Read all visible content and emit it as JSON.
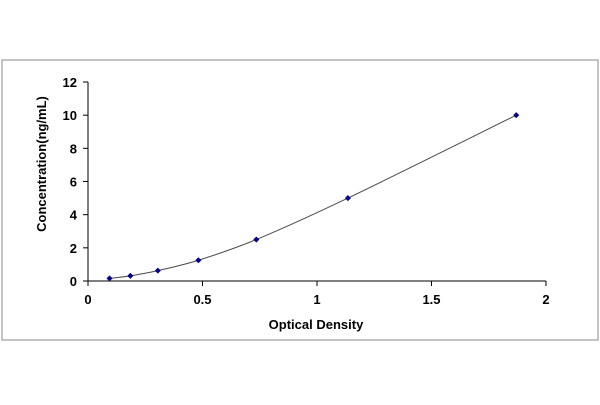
{
  "chart_data": {
    "type": "scatter",
    "title": "",
    "xlabel": "Optical Density",
    "ylabel": "Concentration(ng/mL)",
    "xlim": [
      0,
      2
    ],
    "ylim": [
      0,
      12
    ],
    "x_ticks": [
      0,
      0.5,
      1,
      1.5,
      2
    ],
    "x_tick_labels": [
      "0",
      "0.5",
      "1",
      "1.5",
      "2"
    ],
    "y_ticks": [
      0,
      2,
      4,
      6,
      8,
      10,
      12
    ],
    "y_tick_labels": [
      "0",
      "2",
      "4",
      "6",
      "8",
      "10",
      "12"
    ],
    "grid": false,
    "legend": "none",
    "series": [
      {
        "x": [
          0.094,
          0.185,
          0.305,
          0.482,
          0.735,
          1.135,
          1.87
        ],
        "y": [
          0.156,
          0.312,
          0.625,
          1.25,
          2.5,
          5,
          10
        ],
        "marker_color": "#00008b",
        "line_color": "#4a4a4a",
        "fit_line": true
      }
    ]
  }
}
